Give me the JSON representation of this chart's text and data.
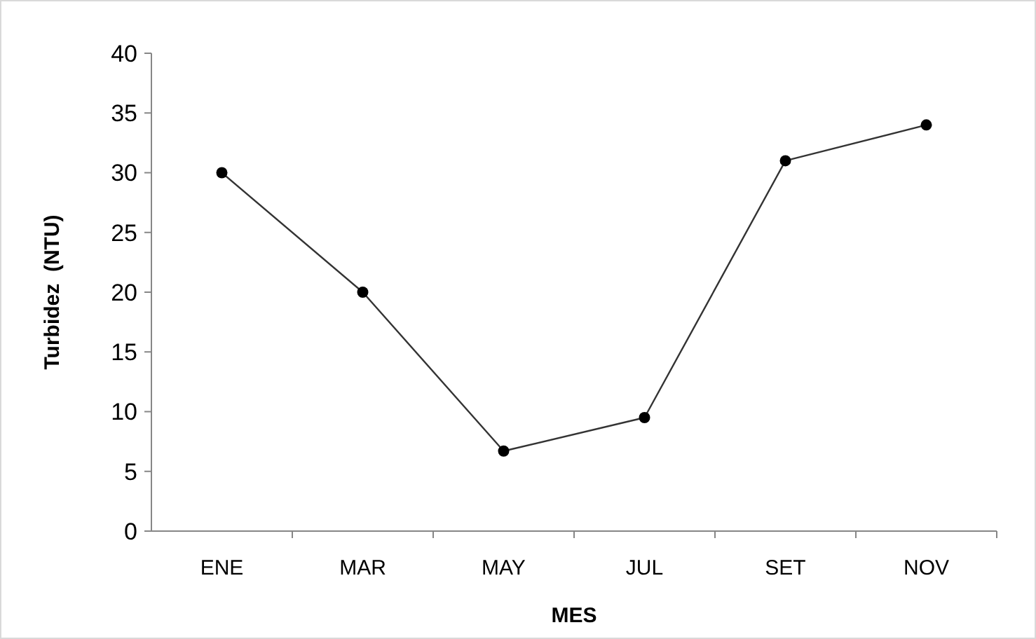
{
  "chart_data": {
    "type": "line",
    "xlabel": "MES",
    "ylabel": "Turbidez  (NTU)",
    "categories": [
      "ENE",
      "MAR",
      "MAY",
      "JUL",
      "SET",
      "NOV"
    ],
    "series": [
      {
        "color": "#000000",
        "values": [
          30,
          20,
          6.7,
          9.5,
          31,
          34
        ]
      }
    ],
    "ylim": [
      0,
      40
    ],
    "yticks": [
      0,
      5,
      10,
      15,
      20,
      25,
      30,
      35,
      40
    ],
    "grid": false,
    "marker": "circle",
    "line_style": "solid"
  }
}
